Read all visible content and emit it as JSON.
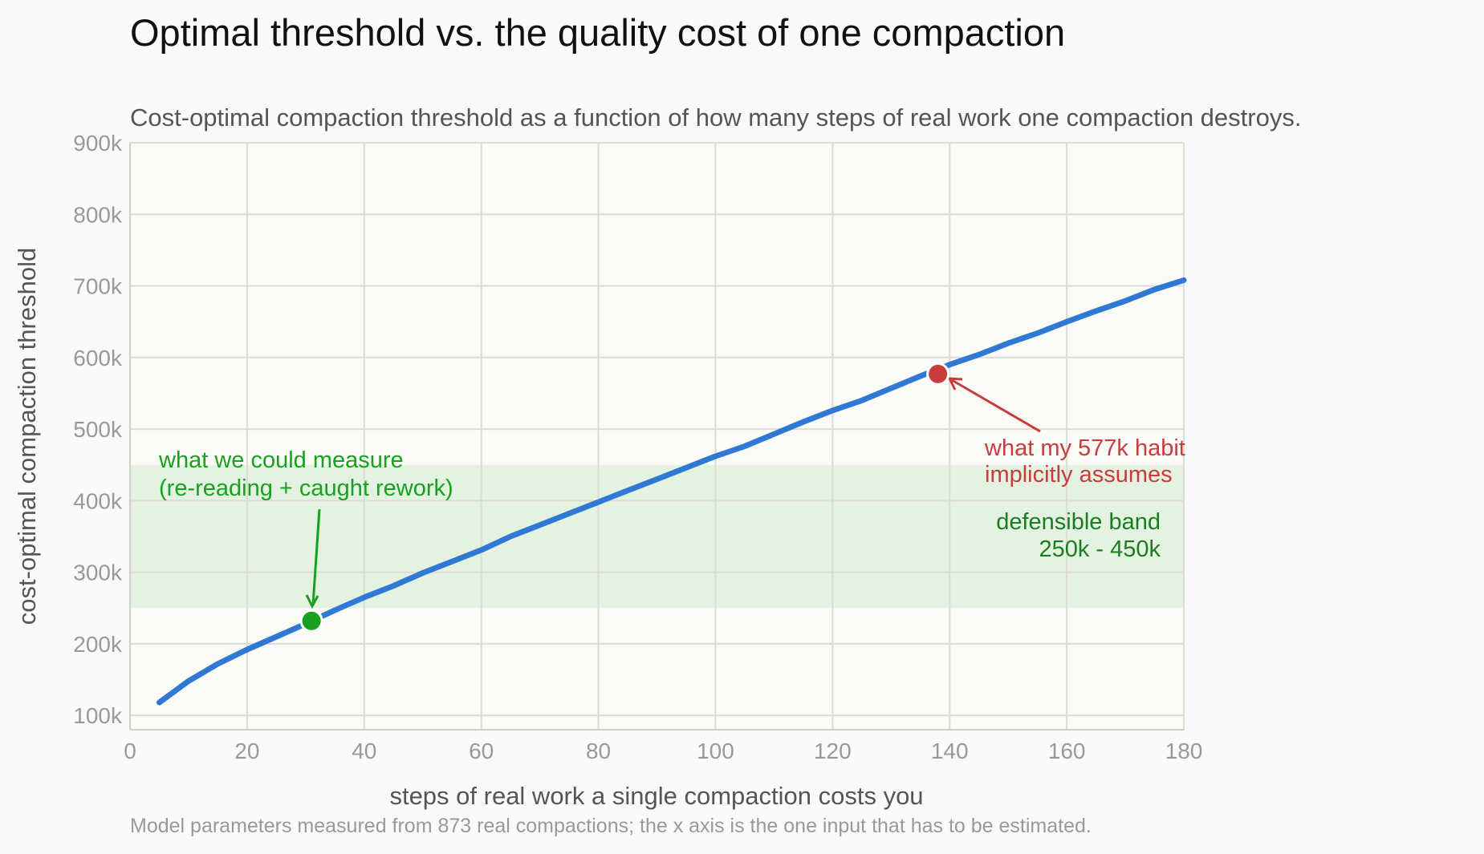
{
  "chart_data": {
    "type": "line",
    "title": "Optimal threshold vs. the quality cost of one compaction",
    "subtitle": "Cost-optimal compaction threshold as a function of how many steps of real work one compaction destroys.",
    "xlabel": "steps of real work a single compaction costs you",
    "ylabel": "cost-optimal compaction threshold",
    "footnote": "Model parameters measured from 873 real compactions; the x axis is the one input that has to be estimated.",
    "xlim": [
      0,
      180
    ],
    "ylim": [
      80000,
      900000
    ],
    "grid": true,
    "x_ticks": [
      0,
      20,
      40,
      60,
      80,
      100,
      120,
      140,
      160,
      180
    ],
    "x_tick_labels": [
      "0",
      "20",
      "40",
      "60",
      "80",
      "100",
      "120",
      "140",
      "160",
      "180"
    ],
    "y_ticks": [
      100000,
      200000,
      300000,
      400000,
      500000,
      600000,
      700000,
      800000,
      900000
    ],
    "y_tick_labels": [
      "100k",
      "200k",
      "300k",
      "400k",
      "500k",
      "600k",
      "700k",
      "800k",
      "900k"
    ],
    "series": [
      {
        "color": "#2f78d4",
        "x": [
          5,
          10,
          15,
          20,
          25,
          30,
          35,
          40,
          45,
          50,
          55,
          60,
          65,
          70,
          75,
          80,
          85,
          90,
          95,
          100,
          105,
          110,
          115,
          120,
          125,
          130,
          135,
          140,
          145,
          150,
          155,
          160,
          165,
          170,
          175,
          180
        ],
        "y": [
          118000,
          148000,
          172000,
          192000,
          210000,
          228000,
          247000,
          265000,
          281000,
          299000,
          315000,
          331000,
          350000,
          366000,
          382000,
          398000,
          414000,
          430000,
          446000,
          462000,
          476000,
          493000,
          510000,
          526000,
          540000,
          557000,
          574000,
          590000,
          604000,
          620000,
          634000,
          650000,
          665000,
          679000,
          695000,
          708000
        ]
      }
    ],
    "band": {
      "y_range": [
        250000,
        450000
      ],
      "color": "#e4f2e2",
      "label_lines": [
        "defensible band",
        "250k - 450k"
      ]
    },
    "markers": [
      {
        "x": 31,
        "y": 232000,
        "color": "#17a11e",
        "label_lines": [
          "what we could measure",
          "(re-reading + caught rework)"
        ]
      },
      {
        "x": 138,
        "y": 577000,
        "color": "#c93c3c",
        "label_lines": [
          "what my 577k habit",
          "implicitly assumes"
        ]
      }
    ]
  }
}
